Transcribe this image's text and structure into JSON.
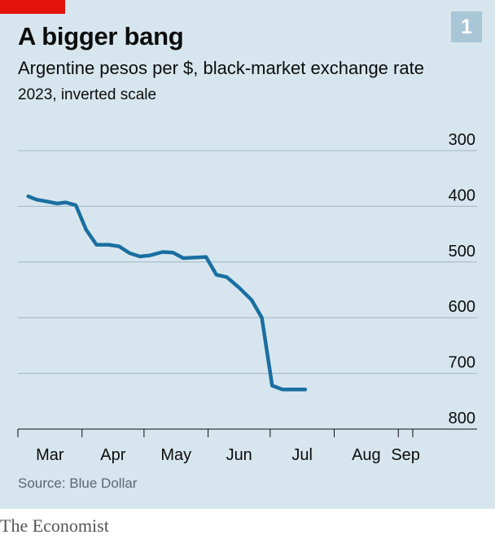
{
  "badge": "1",
  "source": "Source: Blue Dollar",
  "publisher": "The Economist",
  "colors": {
    "accent": "#e3120b",
    "line": "#1a6fa0",
    "panel": "#d7e6ee",
    "badge": "#a9c6d6",
    "grid": "#9fb4c1"
  },
  "chart_data": {
    "type": "line",
    "title": "A bigger bang",
    "subtitle": "Argentine pesos per $, black-market exchange rate",
    "note": "2023, inverted scale",
    "xlabel": "",
    "ylabel": "",
    "y_inverted": true,
    "ylim": [
      300,
      800
    ],
    "yticks": [
      300,
      400,
      500,
      600,
      700,
      800
    ],
    "grid": true,
    "x_months": [
      "Mar",
      "Apr",
      "May",
      "Jun",
      "Jul",
      "Aug",
      "Sep"
    ],
    "series": [
      {
        "values": [
          [
            "2023-03-06",
            382
          ],
          [
            "2023-03-10",
            388
          ],
          [
            "2023-03-16",
            392
          ],
          [
            "2023-03-20",
            395
          ],
          [
            "2023-03-24",
            393
          ],
          [
            "2023-03-29",
            398
          ],
          [
            "2023-04-03",
            442
          ],
          [
            "2023-04-08",
            469
          ],
          [
            "2023-04-14",
            469
          ],
          [
            "2023-04-19",
            472
          ],
          [
            "2023-04-24",
            484
          ],
          [
            "2023-04-29",
            490
          ],
          [
            "2023-05-04",
            488
          ],
          [
            "2023-05-10",
            482
          ],
          [
            "2023-05-15",
            483
          ],
          [
            "2023-05-20",
            493
          ],
          [
            "2023-05-26",
            492
          ],
          [
            "2023-05-31",
            491
          ],
          [
            "2023-06-05",
            523
          ],
          [
            "2023-06-10",
            527
          ],
          [
            "2023-06-16",
            546
          ],
          [
            "2023-06-22",
            568
          ],
          [
            "2023-06-27",
            600
          ],
          [
            "2023-07-02",
            722
          ],
          [
            "2023-07-07",
            729
          ],
          [
            "2023-07-13",
            729
          ],
          [
            "2023-07-18",
            729
          ]
        ]
      }
    ]
  }
}
